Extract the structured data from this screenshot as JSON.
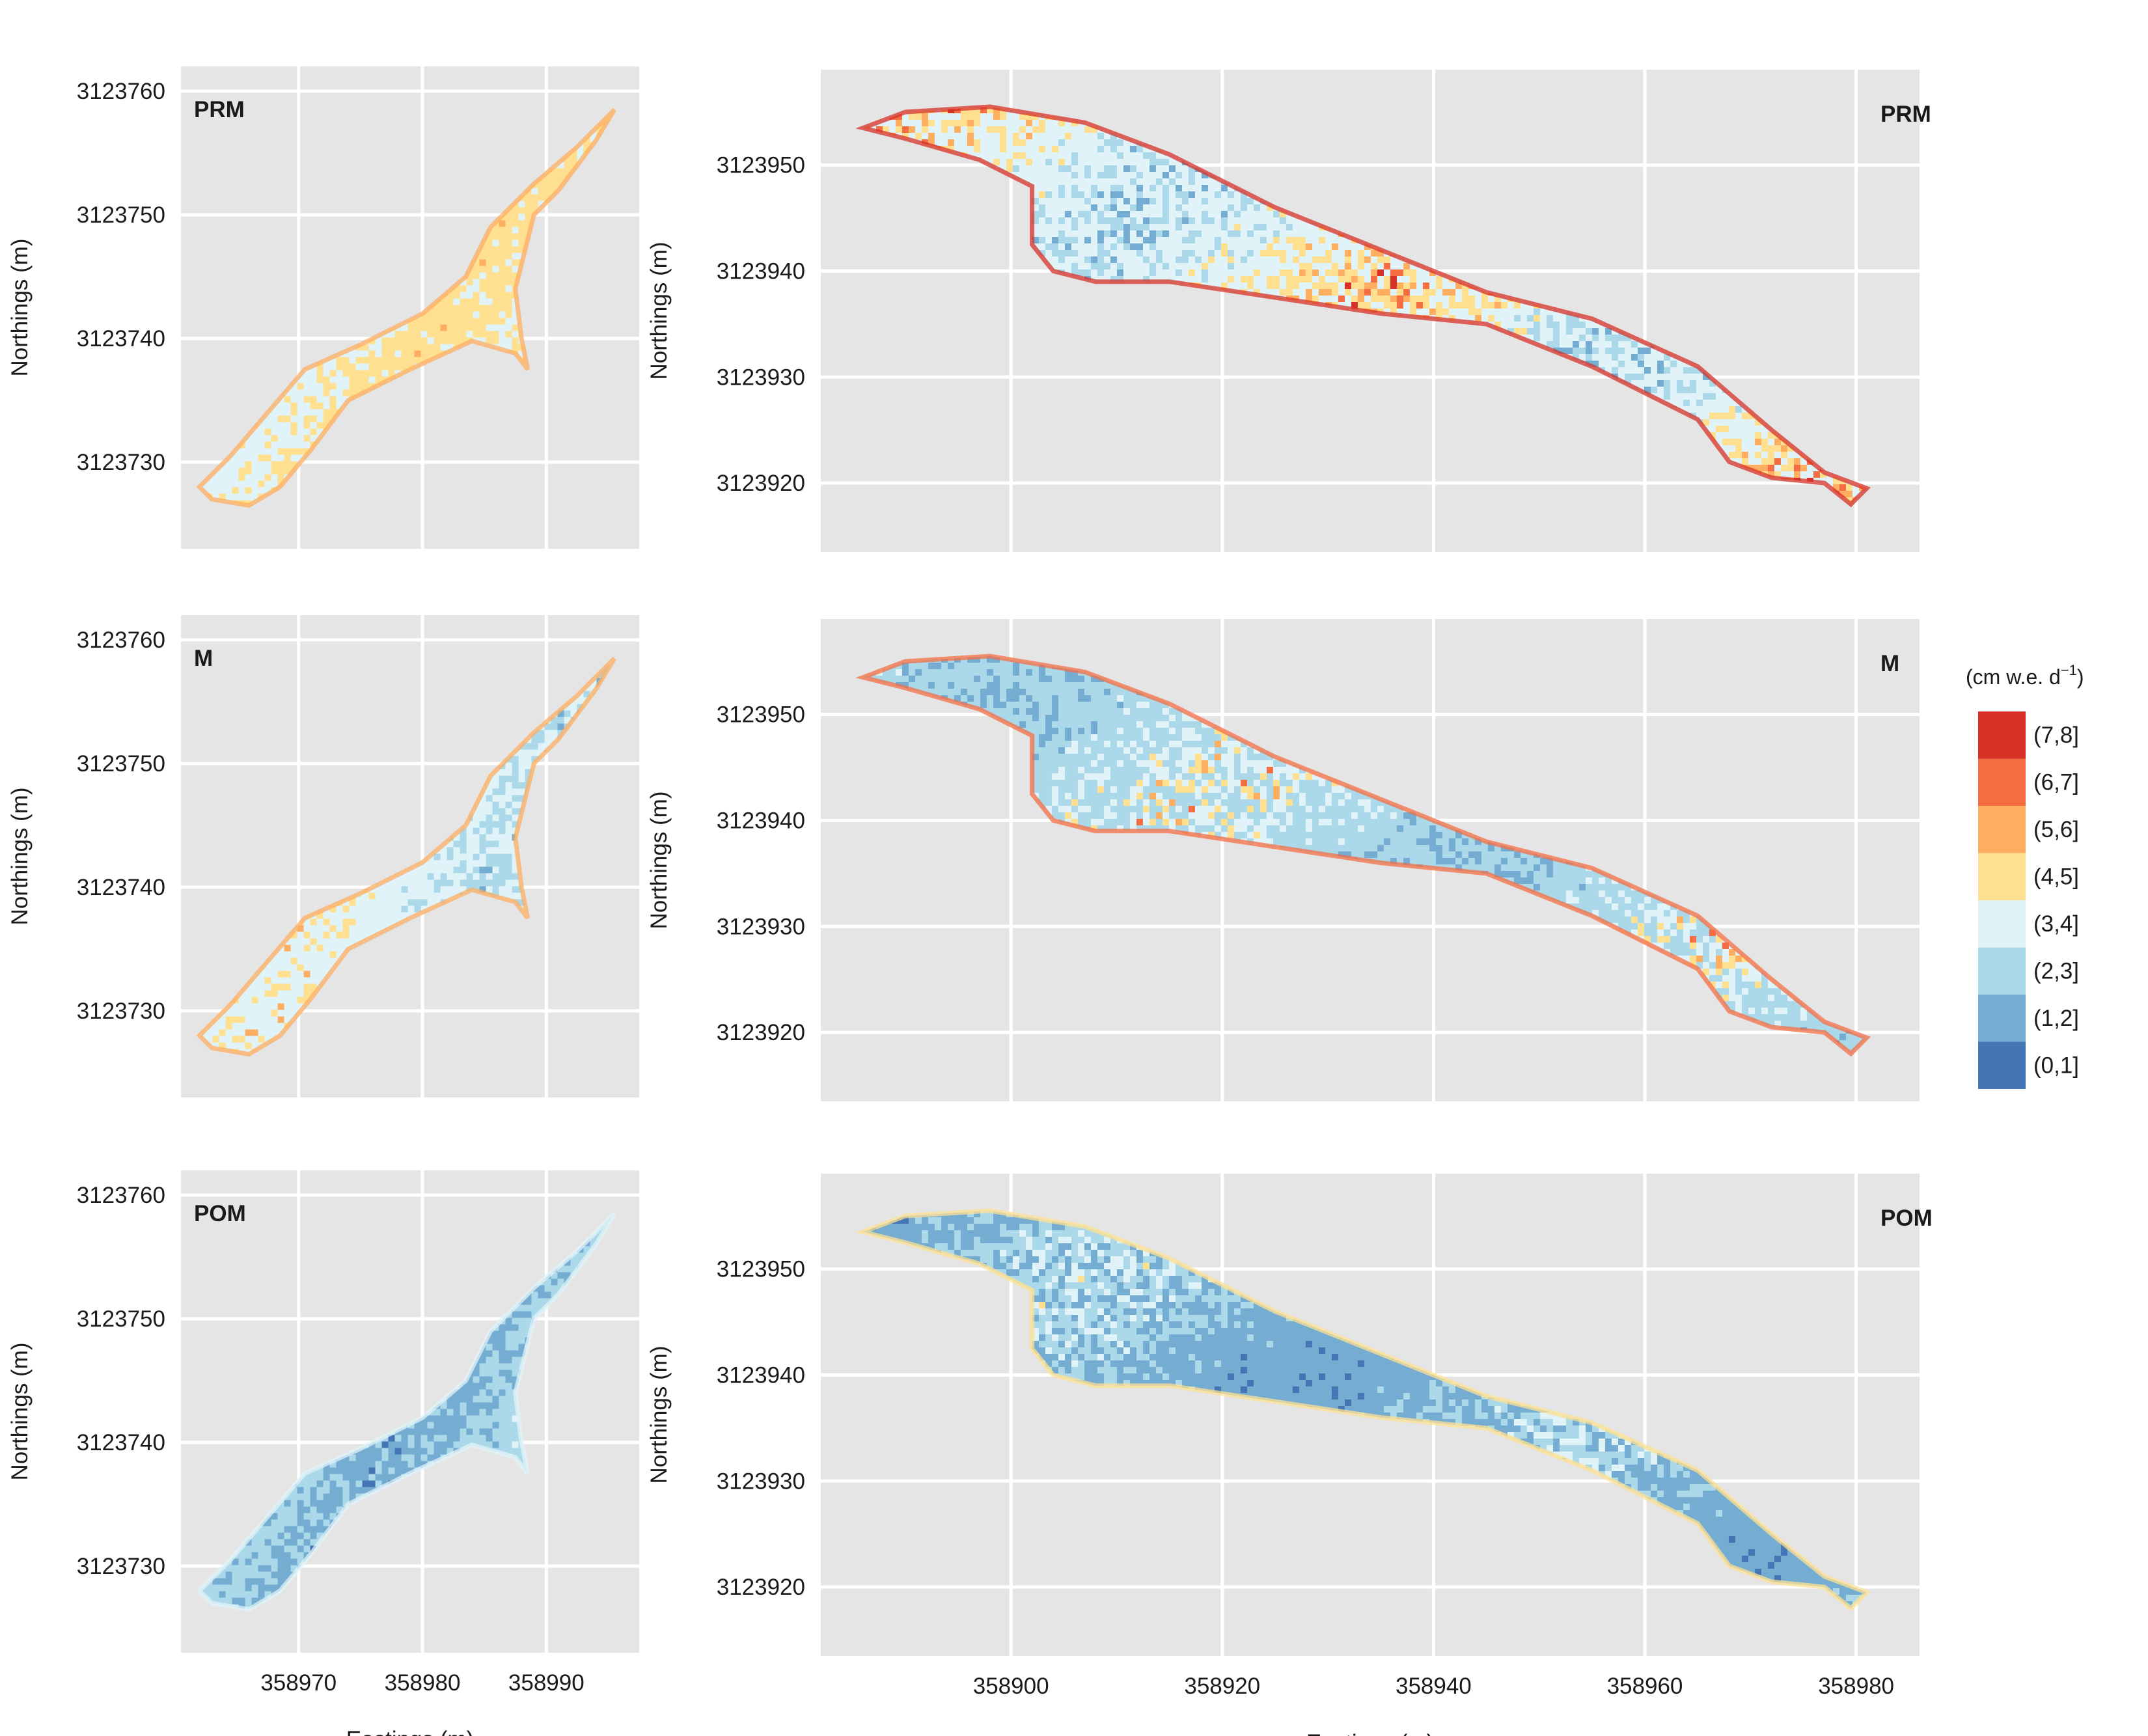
{
  "legend": {
    "title_prefix": "(cm w.e. d",
    "title_exp": "−1",
    "title_suffix": ")",
    "items": [
      {
        "label": "(7,8]",
        "color": "#d73027"
      },
      {
        "label": "(6,7]",
        "color": "#f46d43"
      },
      {
        "label": "(5,6]",
        "color": "#fdae61"
      },
      {
        "label": "(4,5]",
        "color": "#fee090"
      },
      {
        "label": "(3,4]",
        "color": "#e0f3f8"
      },
      {
        "label": "(2,3]",
        "color": "#abd9e9"
      },
      {
        "label": "(1,2]",
        "color": "#74add1"
      },
      {
        "label": "(0,1]",
        "color": "#4575b4"
      }
    ]
  },
  "colors": {
    "panel_bg": "#e5e5e5",
    "grid": "#ffffff"
  },
  "chart_data": [
    {
      "type": "heatmap",
      "panel": "PRM",
      "domain": "small",
      "xlabel": "",
      "ylabel": "Northings (m)",
      "xlim": [
        358960.5,
        358997.5
      ],
      "ylim": [
        3123723,
        3123762
      ],
      "xticks": [
        358970,
        358980,
        358990
      ],
      "xtick_labels": [
        "",
        "",
        ""
      ],
      "yticks": [
        3123730,
        3123740,
        3123750,
        3123760
      ],
      "ytick_labels": [
        "3123730",
        "3123740",
        "3123750",
        "3123760"
      ],
      "class_fractions": {
        "(5,6]": 0.03,
        "(4,5]": 0.45,
        "(3,4]": 0.5,
        "(2,3]": 0.02
      }
    },
    {
      "type": "heatmap",
      "panel": "PRM",
      "domain": "large",
      "xlabel": "",
      "ylabel": "Northings (m)",
      "xlim": [
        358882,
        358986
      ],
      "ylim": [
        3123913.5,
        3123959
      ],
      "xticks": [
        358900,
        358920,
        358940,
        358960,
        358980
      ],
      "xtick_labels": [
        "",
        "",
        "",
        "",
        ""
      ],
      "yticks": [
        3123920,
        3123930,
        3123940,
        3123950
      ],
      "ytick_labels": [
        "3123920",
        "3123930",
        "3123940",
        "3123950"
      ],
      "class_fractions": {
        "(7,8]": 0.02,
        "(6,7]": 0.05,
        "(5,6]": 0.1,
        "(4,5]": 0.18,
        "(3,4]": 0.38,
        "(2,3]": 0.17,
        "(1,2]": 0.1
      }
    },
    {
      "type": "heatmap",
      "panel": "M",
      "domain": "small",
      "xlabel": "",
      "ylabel": "Northings (m)",
      "xlim": [
        358960.5,
        358997.5
      ],
      "ylim": [
        3123723,
        3123762
      ],
      "xticks": [
        358970,
        358980,
        358990
      ],
      "xtick_labels": [
        "",
        "",
        ""
      ],
      "yticks": [
        3123730,
        3123740,
        3123750,
        3123760
      ],
      "ytick_labels": [
        "3123730",
        "3123740",
        "3123750",
        "3123760"
      ],
      "class_fractions": {
        "(5,6]": 0.03,
        "(4,5]": 0.12,
        "(3,4]": 0.55,
        "(2,3]": 0.25,
        "(1,2]": 0.05
      }
    },
    {
      "type": "heatmap",
      "panel": "M",
      "domain": "large",
      "xlabel": "",
      "ylabel": "Northings (m)",
      "xlim": [
        358882,
        358986
      ],
      "ylim": [
        3123913.5,
        3123959
      ],
      "xticks": [
        358900,
        358920,
        358940,
        358960,
        358980
      ],
      "xtick_labels": [
        "",
        "",
        "",
        "",
        ""
      ],
      "yticks": [
        3123920,
        3123930,
        3123940,
        3123950
      ],
      "ytick_labels": [
        "3123920",
        "3123930",
        "3123940",
        "3123950"
      ],
      "class_fractions": {
        "(6,7]": 0.02,
        "(5,6]": 0.05,
        "(4,5]": 0.08,
        "(3,4]": 0.2,
        "(2,3]": 0.45,
        "(1,2]": 0.2
      }
    },
    {
      "type": "heatmap",
      "panel": "POM",
      "domain": "small",
      "xlabel": "Eastings (m)",
      "ylabel": "Northings (m)",
      "xlim": [
        358960.5,
        358997.5
      ],
      "ylim": [
        3123723,
        3123762
      ],
      "xticks": [
        358970,
        358980,
        358990
      ],
      "xtick_labels": [
        "358970",
        "358980",
        "358990"
      ],
      "yticks": [
        3123730,
        3123740,
        3123750,
        3123760
      ],
      "ytick_labels": [
        "3123730",
        "3123740",
        "3123750",
        "3123760"
      ],
      "class_fractions": {
        "(3,4]": 0.08,
        "(2,3]": 0.5,
        "(1,2]": 0.37,
        "(0,1]": 0.05
      }
    },
    {
      "type": "heatmap",
      "panel": "POM",
      "domain": "large",
      "xlabel": "Eastings (m)",
      "ylabel": "Northings (m)",
      "xlim": [
        358882,
        358986
      ],
      "ylim": [
        3123913.5,
        3123959
      ],
      "xticks": [
        358900,
        358920,
        358940,
        358960,
        358980
      ],
      "xtick_labels": [
        "358900",
        "358920",
        "358940",
        "358960",
        "358980"
      ],
      "yticks": [
        3123920,
        3123930,
        3123940,
        3123950
      ],
      "ytick_labels": [
        "3123920",
        "3123930",
        "3123940",
        "3123950"
      ],
      "class_fractions": {
        "(4,5]": 0.02,
        "(3,4]": 0.15,
        "(2,3]": 0.25,
        "(1,2]": 0.5,
        "(0,1]": 0.08
      }
    }
  ]
}
